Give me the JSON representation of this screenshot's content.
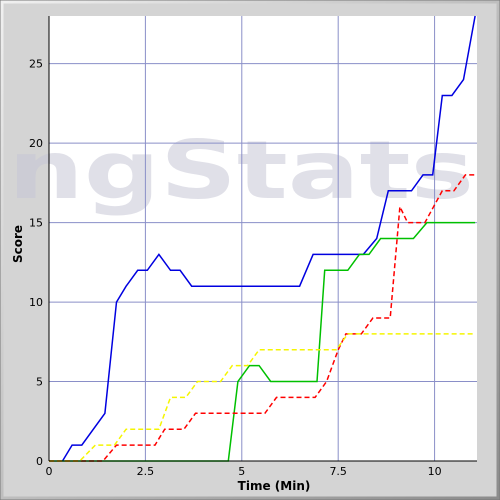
{
  "chart_data": {
    "type": "line",
    "title": "",
    "xlabel": "Time (Min)",
    "ylabel": "Score",
    "xlim": [
      0,
      11.1
    ],
    "ylim": [
      0,
      28
    ],
    "grid": true,
    "x_ticks": [
      "0",
      "2.5",
      "5",
      "7.5",
      "10"
    ],
    "y_ticks": [
      "0",
      "5",
      "10",
      "15",
      "20",
      "25"
    ],
    "watermark": "ngStats",
    "series": [
      {
        "color": "#0000e0",
        "dash": "solid",
        "points": [
          [
            0.35,
            0
          ],
          [
            0.6,
            1
          ],
          [
            0.85,
            1
          ],
          [
            1.45,
            3
          ],
          [
            1.75,
            10
          ],
          [
            2.0,
            11
          ],
          [
            2.3,
            12
          ],
          [
            2.55,
            12
          ],
          [
            2.85,
            13
          ],
          [
            3.15,
            12
          ],
          [
            3.4,
            12
          ],
          [
            3.7,
            11
          ],
          [
            6.5,
            11
          ],
          [
            6.85,
            13
          ],
          [
            7.95,
            13
          ],
          [
            8.15,
            13
          ],
          [
            8.5,
            14
          ],
          [
            8.8,
            17
          ],
          [
            9.4,
            17
          ],
          [
            9.7,
            18
          ],
          [
            9.95,
            18
          ],
          [
            10.2,
            23
          ],
          [
            10.45,
            23
          ],
          [
            10.75,
            24
          ],
          [
            11.05,
            28
          ]
        ]
      },
      {
        "color": "#00c000",
        "dash": "solid",
        "points": [
          [
            0,
            0
          ],
          [
            4.65,
            0
          ],
          [
            4.9,
            5
          ],
          [
            5.2,
            6
          ],
          [
            5.45,
            6
          ],
          [
            5.75,
            5
          ],
          [
            6.95,
            5
          ],
          [
            7.15,
            12
          ],
          [
            7.75,
            12
          ],
          [
            8.05,
            13
          ],
          [
            8.3,
            13
          ],
          [
            8.6,
            14
          ],
          [
            9.45,
            14
          ],
          [
            9.8,
            15
          ],
          [
            11.05,
            15
          ]
        ]
      },
      {
        "color": "#ff0000",
        "dash": "dashed",
        "points": [
          [
            0,
            0
          ],
          [
            1.4,
            0
          ],
          [
            1.75,
            1
          ],
          [
            2.75,
            1
          ],
          [
            3.0,
            2
          ],
          [
            3.5,
            2
          ],
          [
            3.8,
            3
          ],
          [
            5.6,
            3
          ],
          [
            5.9,
            4
          ],
          [
            6.9,
            4
          ],
          [
            7.2,
            5
          ],
          [
            7.5,
            7
          ],
          [
            7.7,
            8
          ],
          [
            8.1,
            8
          ],
          [
            8.4,
            9
          ],
          [
            8.85,
            9
          ],
          [
            9.1,
            16
          ],
          [
            9.3,
            15
          ],
          [
            9.75,
            15
          ],
          [
            10.2,
            17
          ],
          [
            10.5,
            17
          ],
          [
            10.8,
            18
          ],
          [
            11.05,
            18
          ]
        ]
      },
      {
        "color": "#f5f500",
        "dash": "dashed",
        "points": [
          [
            0,
            0
          ],
          [
            0.8,
            0
          ],
          [
            1.2,
            1
          ],
          [
            1.7,
            1
          ],
          [
            2.0,
            2
          ],
          [
            2.85,
            2
          ],
          [
            3.15,
            4
          ],
          [
            3.55,
            4
          ],
          [
            3.85,
            5
          ],
          [
            4.45,
            5
          ],
          [
            4.75,
            6
          ],
          [
            5.15,
            6
          ],
          [
            5.45,
            7
          ],
          [
            7.45,
            7
          ],
          [
            7.75,
            8
          ],
          [
            11.05,
            8
          ]
        ]
      }
    ]
  }
}
